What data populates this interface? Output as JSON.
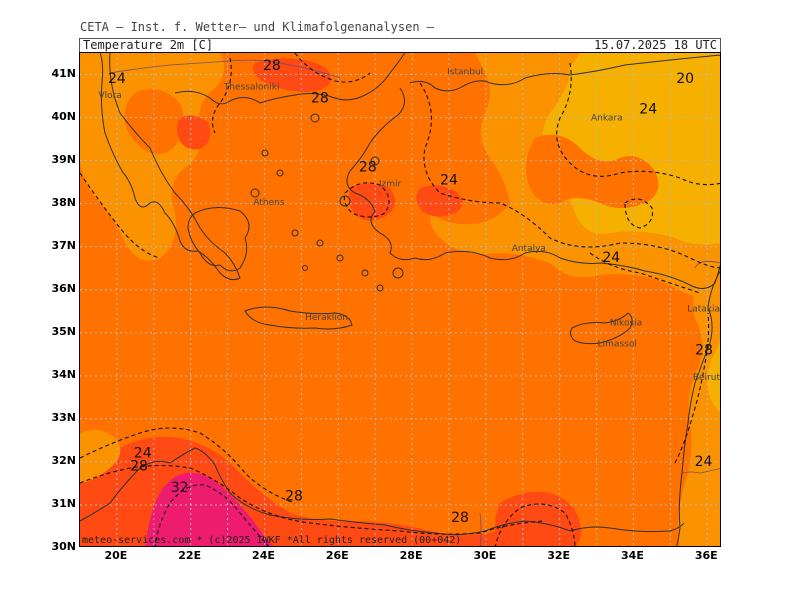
{
  "header": {
    "institute": "CETA – Inst. f. Wetter– und Klimafolgenanalysen –",
    "parameter": "Temperature 2m [C]",
    "valid_time": "15.07.2025  18 UTC"
  },
  "footer": {
    "credit": "meteo-services.com * (c)2025 IWKF *All rights reserved (00+042)"
  },
  "map": {
    "lon_range": [
      19,
      36.4
    ],
    "lat_range": [
      30,
      41.5
    ],
    "lat_ticks": [
      "41N",
      "40N",
      "39N",
      "38N",
      "37N",
      "36N",
      "35N",
      "34N",
      "33N",
      "32N",
      "31N",
      "30N"
    ],
    "lon_ticks": [
      "20E",
      "22E",
      "24E",
      "26E",
      "28E",
      "30E",
      "32E",
      "34E",
      "36E"
    ],
    "cities": [
      {
        "name": "Thessaloniki",
        "lon": 22.9,
        "lat": 40.65
      },
      {
        "name": "Vlora",
        "lon": 19.5,
        "lat": 40.45
      },
      {
        "name": "Istanbul",
        "lon": 28.95,
        "lat": 41.0
      },
      {
        "name": "Ankara",
        "lon": 32.85,
        "lat": 39.93
      },
      {
        "name": "Izmir",
        "lon": 27.1,
        "lat": 38.4
      },
      {
        "name": "Athens",
        "lon": 23.7,
        "lat": 37.97
      },
      {
        "name": "Antalya",
        "lon": 30.7,
        "lat": 36.9
      },
      {
        "name": "Heraklion",
        "lon": 25.1,
        "lat": 35.3
      },
      {
        "name": "Nikosia",
        "lon": 33.36,
        "lat": 35.17
      },
      {
        "name": "Limassol",
        "lon": 33.03,
        "lat": 34.68
      },
      {
        "name": "Latakia",
        "lon": 35.8,
        "lat": 35.5
      },
      {
        "name": "Beirut",
        "lon": 35.5,
        "lat": 33.9
      }
    ],
    "contour_labels": [
      {
        "text": "24",
        "lon": 20.0,
        "lat": 40.8
      },
      {
        "text": "28",
        "lon": 24.2,
        "lat": 41.1
      },
      {
        "text": "28",
        "lon": 25.5,
        "lat": 40.35
      },
      {
        "text": "20",
        "lon": 35.4,
        "lat": 40.8
      },
      {
        "text": "24",
        "lon": 34.4,
        "lat": 40.1
      },
      {
        "text": "28",
        "lon": 26.8,
        "lat": 38.75
      },
      {
        "text": "24",
        "lon": 29.0,
        "lat": 38.45
      },
      {
        "text": "24",
        "lon": 33.4,
        "lat": 36.65
      },
      {
        "text": "24",
        "lon": 20.7,
        "lat": 32.1
      },
      {
        "text": "28",
        "lon": 20.6,
        "lat": 31.8
      },
      {
        "text": "32",
        "lon": 21.7,
        "lat": 31.3
      },
      {
        "text": "28",
        "lon": 24.8,
        "lat": 31.1
      },
      {
        "text": "28",
        "lon": 29.3,
        "lat": 30.6
      },
      {
        "text": "24",
        "lon": 35.9,
        "lat": 31.9
      },
      {
        "text": "28",
        "lon": 36.3,
        "lat": 34.5
      }
    ],
    "colors": {
      "c20_24": "#f5b000",
      "c24_28": "#fb9300",
      "c28_32": "#ff7200",
      "c32_36": "#ff4a14",
      "c36": "#ee1c6e",
      "coast": "#303030",
      "border": "#7a4b6e",
      "grid": "#b8b8b8",
      "isoline": "#111111"
    }
  }
}
